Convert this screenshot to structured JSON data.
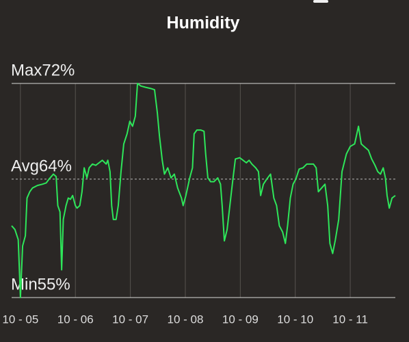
{
  "chart_data": {
    "type": "line",
    "title": "Humidity",
    "color": "#2ee65a",
    "xlim": [
      4.84,
      11.82
    ],
    "ylim": [
      55,
      72
    ],
    "grid": true,
    "xticks": [
      {
        "value": 5,
        "label": "10 - 05"
      },
      {
        "value": 6,
        "label": "10 - 06"
      },
      {
        "value": 7,
        "label": "10 - 07"
      },
      {
        "value": 8,
        "label": "10 - 08"
      },
      {
        "value": 9,
        "label": "10 - 09"
      },
      {
        "value": 10,
        "label": "10 - 10"
      },
      {
        "value": 11,
        "label": "10 - 11"
      }
    ],
    "reference_lines": [
      {
        "value": 72,
        "label": "Max72%",
        "style": "solid"
      },
      {
        "value": 64.4,
        "label": "Avg64%",
        "style": "dashed"
      },
      {
        "value": 55,
        "label": "Min55%",
        "style": "solid"
      }
    ],
    "x": [
      4.84,
      4.9,
      4.96,
      5.0,
      5.04,
      5.09,
      5.12,
      5.17,
      5.22,
      5.31,
      5.4,
      5.47,
      5.52,
      5.6,
      5.65,
      5.68,
      5.72,
      5.75,
      5.78,
      5.83,
      5.87,
      5.91,
      5.95,
      6.0,
      6.03,
      6.08,
      6.12,
      6.16,
      6.21,
      6.25,
      6.31,
      6.37,
      6.43,
      6.49,
      6.56,
      6.59,
      6.63,
      6.66,
      6.69,
      6.74,
      6.78,
      6.83,
      6.88,
      6.94,
      6.99,
      7.04,
      7.09,
      7.13,
      7.19,
      7.27,
      7.37,
      7.44,
      7.49,
      7.53,
      7.58,
      7.62,
      7.68,
      7.74,
      7.8,
      7.86,
      7.93,
      7.96,
      8.01,
      8.08,
      8.13,
      8.16,
      8.21,
      8.28,
      8.34,
      8.37,
      8.41,
      8.46,
      8.52,
      8.59,
      8.64,
      8.67,
      8.71,
      8.76,
      8.81,
      8.86,
      8.91,
      8.99,
      9.05,
      9.11,
      9.16,
      9.21,
      9.28,
      9.33,
      9.37,
      9.42,
      9.48,
      9.55,
      9.61,
      9.66,
      9.71,
      9.77,
      9.82,
      9.86,
      9.91,
      9.96,
      10.01,
      10.07,
      10.14,
      10.21,
      10.27,
      10.33,
      10.38,
      10.42,
      10.48,
      10.54,
      10.59,
      10.63,
      10.68,
      10.73,
      10.79,
      10.85,
      10.93,
      11.0,
      11.08,
      11.15,
      11.2,
      11.25,
      11.33,
      11.39,
      11.45,
      11.5,
      11.55,
      11.6,
      11.64,
      11.67,
      11.71,
      11.76,
      11.82
    ],
    "values": [
      60.7,
      60.4,
      59.6,
      55.0,
      59.1,
      59.9,
      62.9,
      63.4,
      63.7,
      63.9,
      64.0,
      64.1,
      64.4,
      64.8,
      64.6,
      62.3,
      61.8,
      57.2,
      61.2,
      62.3,
      62.9,
      62.8,
      63.1,
      62.3,
      62.1,
      62.3,
      63.4,
      65.3,
      64.5,
      65.3,
      65.6,
      65.5,
      65.7,
      65.9,
      65.6,
      65.9,
      65.0,
      62.3,
      61.2,
      61.2,
      62.3,
      65.0,
      67.2,
      68.0,
      69.0,
      68.6,
      69.4,
      72.0,
      71.8,
      71.7,
      71.6,
      71.5,
      69.7,
      67.8,
      65.9,
      64.8,
      65.3,
      64.5,
      64.8,
      63.7,
      62.9,
      62.3,
      63.1,
      64.5,
      65.3,
      68.0,
      68.3,
      68.3,
      68.2,
      66.4,
      64.5,
      64.2,
      64.2,
      64.5,
      64.0,
      62.3,
      59.5,
      60.4,
      62.3,
      64.2,
      66.0,
      66.1,
      65.9,
      65.7,
      65.9,
      65.6,
      65.3,
      65.0,
      63.1,
      64.0,
      64.4,
      64.8,
      62.9,
      62.3,
      60.7,
      60.2,
      59.3,
      60.7,
      62.9,
      64.0,
      64.4,
      65.2,
      65.3,
      65.6,
      65.6,
      65.6,
      65.3,
      63.4,
      63.7,
      64.0,
      62.3,
      59.3,
      58.5,
      59.6,
      61.2,
      65.0,
      66.4,
      67.0,
      67.2,
      68.6,
      67.2,
      67.0,
      66.7,
      66.0,
      65.5,
      65.0,
      64.8,
      65.3,
      64.5,
      63.1,
      62.1,
      62.9,
      63.1
    ]
  }
}
